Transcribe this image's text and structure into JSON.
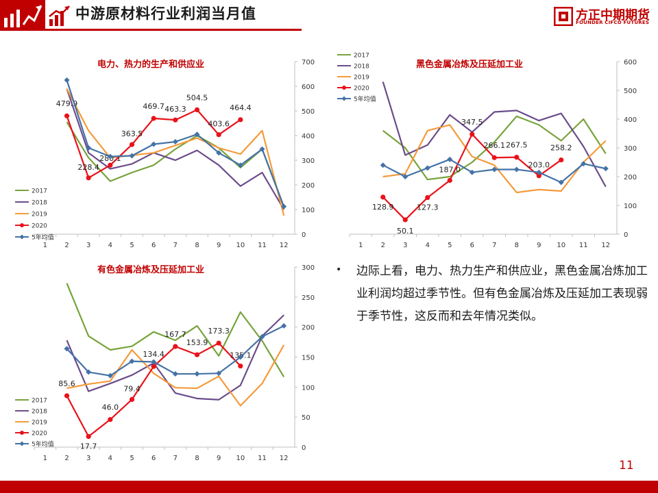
{
  "header": {
    "title": "中游原材料行业利润当月值",
    "logo_cn": "方正中期期货",
    "logo_en": "FOUNDER CIFCO FUTURES"
  },
  "bullet": {
    "text": "边际上看，电力、热力生产和供应业，黑色金属冶炼加工业利润均超过季节性。但有色金属冶炼及压延加工表现弱于季节性，这反而和去年情况类似。"
  },
  "page_number": "11",
  "chart_data": [
    {
      "type": "line",
      "title": "电力、热力的生产和供应业",
      "categories": [
        "1",
        "2",
        "3",
        "4",
        "5",
        "6",
        "7",
        "8",
        "9",
        "10",
        "11",
        "12"
      ],
      "ylim": [
        0,
        700
      ],
      "yticks": [
        "0",
        "100",
        "200",
        "300",
        "400",
        "500",
        "600",
        "700"
      ],
      "legend_position": "bottom-left",
      "grid": false,
      "series": [
        {
          "name": "2017",
          "color": "#77a33b",
          "values": [
            null,
            455,
            310,
            215,
            250,
            280,
            345,
            400,
            350,
            270,
            345,
            110
          ]
        },
        {
          "name": "2018",
          "color": "#6b4c8a",
          "values": [
            null,
            590,
            330,
            265,
            285,
            330,
            300,
            340,
            280,
            195,
            250,
            100
          ]
        },
        {
          "name": "2019",
          "color": "#f59a3a",
          "values": [
            null,
            590,
            420,
            310,
            320,
            330,
            360,
            390,
            350,
            325,
            420,
            75
          ]
        },
        {
          "name": "2020",
          "color": "#e8121a",
          "marker": "circle",
          "values": [
            null,
            479.9,
            228.4,
            280.1,
            363.5,
            469.7,
            463.3,
            504.5,
            403.6,
            464.4,
            null,
            null
          ],
          "labels": [
            "",
            "479.9",
            "228.4",
            "280.1",
            "363.5",
            "469.7",
            "463.3",
            "504.5",
            "403.6",
            "464.4",
            "",
            ""
          ]
        },
        {
          "name": "5年均值",
          "color": "#4472a6",
          "marker": "diamond",
          "values": [
            null,
            625,
            350,
            315,
            318,
            365,
            375,
            405,
            330,
            280,
            345,
            112
          ]
        }
      ]
    },
    {
      "type": "line",
      "title": "黑色金属冶炼及压延加工业",
      "categories": [
        "1",
        "2",
        "3",
        "4",
        "5",
        "6",
        "7",
        "8",
        "9",
        "10",
        "11",
        "12"
      ],
      "ylim": [
        0,
        600
      ],
      "yticks": [
        "0",
        "100",
        "200",
        "300",
        "400",
        "500",
        "600"
      ],
      "legend_position": "top-left",
      "grid": false,
      "series": [
        {
          "name": "2017",
          "color": "#77a33b",
          "values": [
            null,
            360,
            300,
            190,
            200,
            250,
            320,
            410,
            380,
            325,
            400,
            280
          ]
        },
        {
          "name": "2018",
          "color": "#6b4c8a",
          "values": [
            null,
            530,
            275,
            310,
            415,
            355,
            425,
            430,
            395,
            420,
            305,
            165
          ]
        },
        {
          "name": "2019",
          "color": "#f59a3a",
          "values": [
            null,
            200,
            210,
            360,
            380,
            270,
            240,
            145,
            155,
            150,
            250,
            325
          ]
        },
        {
          "name": "2020",
          "color": "#e8121a",
          "marker": "circle",
          "values": [
            null,
            128.9,
            50.1,
            127.3,
            187.0,
            347.5,
            266.1,
            267.5,
            203.0,
            258.2,
            null,
            null
          ],
          "labels": [
            "",
            "128.9",
            "50.1",
            "127.3",
            "187.0",
            "347.5",
            "266.1",
            "267.5",
            "203.0",
            "258.2",
            "",
            ""
          ]
        },
        {
          "name": "5年均值",
          "color": "#4472a6",
          "marker": "diamond",
          "values": [
            null,
            240,
            200,
            230,
            260,
            215,
            225,
            225,
            215,
            180,
            245,
            228
          ]
        }
      ]
    },
    {
      "type": "line",
      "title": "有色金属冶炼及压延加工业",
      "categories": [
        "1",
        "2",
        "3",
        "4",
        "5",
        "6",
        "7",
        "8",
        "9",
        "10",
        "11",
        "12"
      ],
      "ylim": [
        0,
        300
      ],
      "yticks": [
        "0",
        "50",
        "100",
        "150",
        "200",
        "250",
        "300"
      ],
      "legend_position": "bottom-left",
      "grid": false,
      "series": [
        {
          "name": "2017",
          "color": "#77a33b",
          "values": [
            null,
            273,
            185,
            162,
            168,
            192,
            178,
            202,
            152,
            225,
            177,
            117
          ]
        },
        {
          "name": "2018",
          "color": "#6b4c8a",
          "values": [
            null,
            178,
            93,
            106,
            120,
            140,
            90,
            81,
            79,
            103,
            185,
            220
          ]
        },
        {
          "name": "2019",
          "color": "#f59a3a",
          "values": [
            null,
            98,
            105,
            110,
            162,
            123,
            99,
            98,
            118,
            69,
            106,
            170
          ]
        },
        {
          "name": "2020",
          "color": "#e8121a",
          "marker": "circle",
          "values": [
            null,
            85.6,
            17.7,
            46.0,
            79.4,
            134.4,
            167.7,
            153.9,
            173.3,
            135.1,
            null,
            null
          ],
          "labels": [
            "",
            "85.6",
            "17.7",
            "46.0",
            "79.4",
            "134.4",
            "167.7",
            "153.9",
            "173.3",
            "135.1",
            "",
            ""
          ]
        },
        {
          "name": "5年均值",
          "color": "#4472a6",
          "marker": "diamond",
          "values": [
            null,
            164,
            125,
            119,
            143,
            142,
            122,
            122,
            123,
            150,
            184,
            202
          ]
        }
      ]
    }
  ]
}
